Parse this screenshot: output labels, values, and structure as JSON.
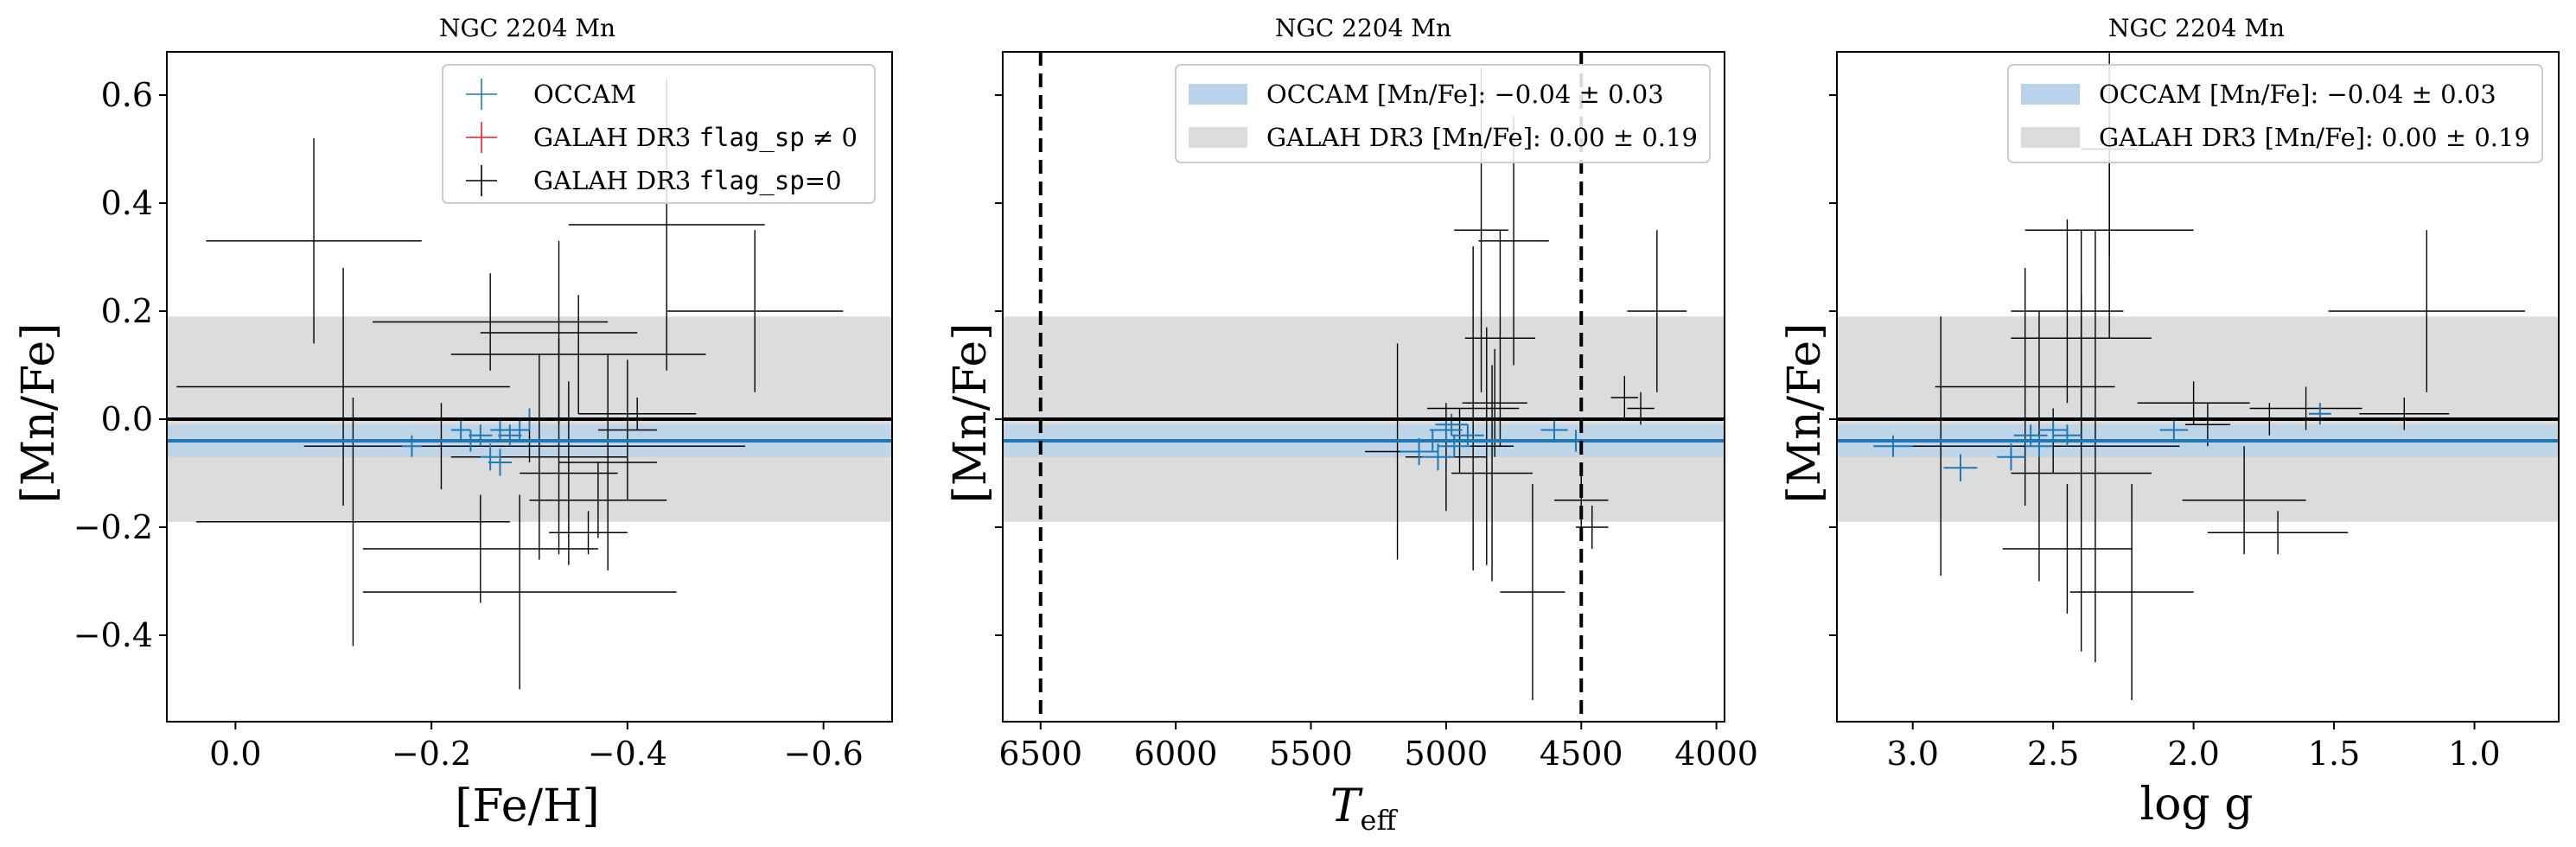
{
  "colors": {
    "occam": "#1f77b4",
    "occam_band": "#b9d3ea",
    "galah_flagged": "#d62728",
    "galah": "#000000",
    "galah_band": "#dcdcdc"
  },
  "panels": [
    {
      "title": "NGC 2204 Mn",
      "xlabel": "[Fe/H]",
      "ylabel": "[Mn/Fe]",
      "xticks": [
        "0.0",
        "−0.2",
        "−0.4",
        "−0.6"
      ],
      "yticks": [
        "0.6",
        "0.4",
        "0.2",
        "0.0",
        "−0.2",
        "−0.4"
      ],
      "legend": [
        {
          "kind": "cross",
          "color": "occam",
          "text": "OCCAM"
        },
        {
          "kind": "cross",
          "color": "galah_flagged",
          "text": "GALAH DR3 ",
          "mono": "flag_sp",
          "tail": " ≠ 0"
        },
        {
          "kind": "cross",
          "color": "galah",
          "text": "GALAH DR3 ",
          "mono": "flag_sp",
          "tail": "=0"
        }
      ]
    },
    {
      "title": "NGC 2204 Mn",
      "xlabel": "T",
      "xlabel_sub": "eff",
      "ylabel": "[Mn/Fe]",
      "xticks": [
        "6500",
        "6000",
        "5500",
        "5000",
        "4500",
        "4000"
      ],
      "legend": [
        {
          "kind": "patch",
          "color": "occam_band",
          "text": "OCCAM [Mn/Fe]: −0.04 ± 0.03"
        },
        {
          "kind": "patch",
          "color": "galah_band",
          "text": "GALAH DR3 [Mn/Fe]: 0.00 ± 0.19"
        }
      ]
    },
    {
      "title": "NGC 2204 Mn",
      "xlabel": "log g",
      "ylabel": "[Mn/Fe]",
      "xticks": [
        "3.0",
        "2.5",
        "2.0",
        "1.5",
        "1.0"
      ],
      "legend": [
        {
          "kind": "patch",
          "color": "occam_band",
          "text": "OCCAM [Mn/Fe]: −0.04 ± 0.03"
        },
        {
          "kind": "patch",
          "color": "galah_band",
          "text": "GALAH DR3 [Mn/Fe]: 0.00 ± 0.19"
        }
      ]
    }
  ],
  "chart_data": [
    {
      "type": "scatter",
      "title": "NGC 2204 Mn",
      "xlabel": "[Fe/H]",
      "ylabel": "[Mn/Fe]",
      "x_inverted": true,
      "xlim": [
        0.07,
        -0.67
      ],
      "ylim": [
        -0.56,
        0.68
      ],
      "xtick_values": [
        0.0,
        -0.2,
        -0.4,
        -0.6
      ],
      "ytick_values": [
        0.6,
        0.4,
        0.2,
        0.0,
        -0.2,
        -0.4
      ],
      "bands": [
        {
          "name": "GALAH DR3 [Mn/Fe]",
          "center": 0.0,
          "halfwidth": 0.19,
          "color": "galah_band"
        },
        {
          "name": "OCCAM [Mn/Fe]",
          "center": -0.04,
          "halfwidth": 0.03,
          "color": "occam_band"
        }
      ],
      "hlines": [
        {
          "y": 0.0,
          "color": "#000000"
        },
        {
          "y": -0.04,
          "color": "#1f77b4"
        }
      ],
      "vlines": [],
      "series": [
        {
          "name": "OCCAM",
          "color": "occam",
          "points": [
            {
              "x": -0.23,
              "y": -0.02,
              "xerr": 0.01,
              "yerr": 0.02
            },
            {
              "x": -0.24,
              "y": -0.04,
              "xerr": 0.01,
              "yerr": 0.02
            },
            {
              "x": -0.25,
              "y": -0.03,
              "xerr": 0.012,
              "yerr": 0.02
            },
            {
              "x": -0.26,
              "y": -0.07,
              "xerr": 0.01,
              "yerr": 0.025
            },
            {
              "x": -0.27,
              "y": -0.08,
              "xerr": 0.012,
              "yerr": 0.025
            },
            {
              "x": -0.27,
              "y": -0.02,
              "xerr": 0.01,
              "yerr": 0.02
            },
            {
              "x": -0.28,
              "y": -0.03,
              "xerr": 0.012,
              "yerr": 0.02
            },
            {
              "x": -0.29,
              "y": -0.02,
              "xerr": 0.01,
              "yerr": 0.02
            },
            {
              "x": -0.3,
              "y": 0.0,
              "xerr": 0.012,
              "yerr": 0.02
            },
            {
              "x": -0.18,
              "y": -0.05,
              "xerr": 0.01,
              "yerr": 0.02
            }
          ]
        },
        {
          "name": "GALAH DR3 flag_sp ≠ 0",
          "color": "galah_flagged",
          "points": []
        },
        {
          "name": "GALAH DR3 flag_sp=0",
          "color": "galah",
          "points": [
            {
              "x": -0.08,
              "y": 0.33,
              "xerr": 0.11,
              "yerr": 0.19
            },
            {
              "x": -0.44,
              "y": 0.36,
              "xerr": 0.1,
              "yerr": 0.27
            },
            {
              "x": -0.53,
              "y": 0.2,
              "xerr": 0.09,
              "yerr": 0.15
            },
            {
              "x": -0.33,
              "y": 0.16,
              "xerr": 0.08,
              "yerr": 0.17
            },
            {
              "x": -0.35,
              "y": 0.12,
              "xerr": 0.13,
              "yerr": 0.11
            },
            {
              "x": -0.26,
              "y": 0.18,
              "xerr": 0.12,
              "yerr": 0.09
            },
            {
              "x": -0.11,
              "y": 0.06,
              "xerr": 0.17,
              "yerr": 0.22
            },
            {
              "x": -0.21,
              "y": -0.05,
              "xerr": 0.14,
              "yerr": 0.08
            },
            {
              "x": -0.12,
              "y": -0.19,
              "xerr": 0.16,
              "yerr": 0.23
            },
            {
              "x": -0.31,
              "y": -0.07,
              "xerr": 0.09,
              "yerr": 0.19
            },
            {
              "x": -0.34,
              "y": -0.1,
              "xerr": 0.05,
              "yerr": 0.17
            },
            {
              "x": -0.38,
              "y": -0.08,
              "xerr": 0.05,
              "yerr": 0.2
            },
            {
              "x": -0.33,
              "y": -0.05,
              "xerr": 0.13,
              "yerr": 0.2
            },
            {
              "x": -0.25,
              "y": -0.24,
              "xerr": 0.12,
              "yerr": 0.1
            },
            {
              "x": -0.29,
              "y": -0.32,
              "xerr": 0.16,
              "yerr": 0.18
            },
            {
              "x": -0.36,
              "y": -0.21,
              "xerr": 0.04,
              "yerr": 0.04
            },
            {
              "x": -0.41,
              "y": 0.01,
              "xerr": 0.06,
              "yerr": 0.03
            },
            {
              "x": -0.37,
              "y": -0.15,
              "xerr": 0.07,
              "yerr": 0.07
            },
            {
              "x": -0.4,
              "y": -0.02,
              "xerr": 0.03,
              "yerr": 0.13
            },
            {
              "x": -0.3,
              "y": -0.05,
              "xerr": 0.22,
              "yerr": 0.03
            }
          ]
        }
      ]
    },
    {
      "type": "scatter",
      "title": "NGC 2204 Mn",
      "xlabel": "Teff",
      "ylabel": "[Mn/Fe]",
      "x_inverted": true,
      "xlim": [
        6640,
        3970
      ],
      "ylim": [
        -0.56,
        0.68
      ],
      "xtick_values": [
        6500,
        6000,
        5500,
        5000,
        4500,
        4000
      ],
      "bands": [
        {
          "name": "GALAH DR3 [Mn/Fe]",
          "center": 0.0,
          "halfwidth": 0.19,
          "color": "galah_band"
        },
        {
          "name": "OCCAM [Mn/Fe]",
          "center": -0.04,
          "halfwidth": 0.03,
          "color": "occam_band"
        }
      ],
      "hlines": [
        {
          "y": 0.0,
          "color": "#000000"
        },
        {
          "y": -0.04,
          "color": "#1f77b4"
        }
      ],
      "vlines": [
        {
          "x": 6500,
          "dashed": true
        },
        {
          "x": 4500,
          "dashed": true
        }
      ],
      "series": [
        {
          "name": "OCCAM",
          "color": "occam",
          "points": [
            {
              "x": 5000,
              "y": -0.02,
              "xerr": 60,
              "yerr": 0.02
            },
            {
              "x": 5050,
              "y": -0.04,
              "xerr": 70,
              "yerr": 0.02
            },
            {
              "x": 4970,
              "y": -0.05,
              "xerr": 60,
              "yerr": 0.02
            },
            {
              "x": 5100,
              "y": -0.06,
              "xerr": 70,
              "yerr": 0.025
            },
            {
              "x": 5030,
              "y": -0.07,
              "xerr": 60,
              "yerr": 0.025
            },
            {
              "x": 4920,
              "y": -0.03,
              "xerr": 60,
              "yerr": 0.02
            },
            {
              "x": 4600,
              "y": -0.02,
              "xerr": 50,
              "yerr": 0.02
            },
            {
              "x": 4520,
              "y": -0.04,
              "xerr": 50,
              "yerr": 0.02
            },
            {
              "x": 4980,
              "y": -0.01,
              "xerr": 60,
              "yerr": 0.02
            }
          ]
        },
        {
          "name": "GALAH DR3 flag_sp=0",
          "color": "galah",
          "points": [
            {
              "x": 4870,
              "y": 0.35,
              "xerr": 100,
              "yerr": 0.3
            },
            {
              "x": 4220,
              "y": 0.2,
              "xerr": 110,
              "yerr": 0.15
            },
            {
              "x": 4750,
              "y": 0.33,
              "xerr": 130,
              "yerr": 0.23
            },
            {
              "x": 4800,
              "y": 0.15,
              "xerr": 130,
              "yerr": 0.2
            },
            {
              "x": 4900,
              "y": 0.02,
              "xerr": 170,
              "yerr": 0.3
            },
            {
              "x": 5180,
              "y": -0.06,
              "xerr": 120,
              "yerr": 0.2
            },
            {
              "x": 4850,
              "y": -0.05,
              "xerr": 100,
              "yerr": 0.22
            },
            {
              "x": 4830,
              "y": -0.1,
              "xerr": 150,
              "yerr": 0.2
            },
            {
              "x": 4680,
              "y": -0.32,
              "xerr": 120,
              "yerr": 0.2
            },
            {
              "x": 4820,
              "y": 0.03,
              "xerr": 120,
              "yerr": 0.1
            },
            {
              "x": 5000,
              "y": -0.07,
              "xerr": 150,
              "yerr": 0.1
            },
            {
              "x": 4500,
              "y": -0.15,
              "xerr": 100,
              "yerr": 0.06
            },
            {
              "x": 4460,
              "y": -0.2,
              "xerr": 60,
              "yerr": 0.04
            },
            {
              "x": 4340,
              "y": 0.04,
              "xerr": 50,
              "yerr": 0.04
            },
            {
              "x": 4280,
              "y": 0.02,
              "xerr": 50,
              "yerr": 0.03
            },
            {
              "x": 4950,
              "y": -0.04,
              "xerr": 120,
              "yerr": 0.06
            }
          ]
        }
      ]
    },
    {
      "type": "scatter",
      "title": "NGC 2204 Mn",
      "xlabel": "log g",
      "ylabel": "[Mn/Fe]",
      "x_inverted": true,
      "xlim": [
        3.27,
        0.7
      ],
      "ylim": [
        -0.56,
        0.68
      ],
      "xtick_values": [
        3.0,
        2.5,
        2.0,
        1.5,
        1.0
      ],
      "bands": [
        {
          "name": "GALAH DR3 [Mn/Fe]",
          "center": 0.0,
          "halfwidth": 0.19,
          "color": "galah_band"
        },
        {
          "name": "OCCAM [Mn/Fe]",
          "center": -0.04,
          "halfwidth": 0.03,
          "color": "occam_band"
        }
      ],
      "hlines": [
        {
          "y": 0.0,
          "color": "#000000"
        },
        {
          "y": -0.04,
          "color": "#1f77b4"
        }
      ],
      "vlines": [],
      "series": [
        {
          "name": "OCCAM",
          "color": "occam",
          "points": [
            {
              "x": 3.07,
              "y": -0.05,
              "xerr": 0.07,
              "yerr": 0.02
            },
            {
              "x": 2.83,
              "y": -0.09,
              "xerr": 0.06,
              "yerr": 0.025
            },
            {
              "x": 2.65,
              "y": -0.07,
              "xerr": 0.05,
              "yerr": 0.025
            },
            {
              "x": 2.58,
              "y": -0.03,
              "xerr": 0.06,
              "yerr": 0.02
            },
            {
              "x": 2.55,
              "y": -0.05,
              "xerr": 0.05,
              "yerr": 0.02
            },
            {
              "x": 2.5,
              "y": -0.02,
              "xerr": 0.05,
              "yerr": 0.02
            },
            {
              "x": 2.07,
              "y": -0.02,
              "xerr": 0.05,
              "yerr": 0.02
            },
            {
              "x": 1.55,
              "y": 0.01,
              "xerr": 0.04,
              "yerr": 0.02
            },
            {
              "x": 2.45,
              "y": -0.03,
              "xerr": 0.05,
              "yerr": 0.02
            }
          ]
        },
        {
          "name": "GALAH DR3 flag_sp=0",
          "color": "galah",
          "points": [
            {
              "x": 2.3,
              "y": 0.5,
              "xerr": 0.1,
              "yerr": 0.2
            },
            {
              "x": 2.3,
              "y": 0.35,
              "xerr": 0.3,
              "yerr": 0.2
            },
            {
              "x": 1.17,
              "y": 0.2,
              "xerr": 0.35,
              "yerr": 0.15
            },
            {
              "x": 2.4,
              "y": 0.15,
              "xerr": 0.25,
              "yerr": 0.2
            },
            {
              "x": 2.45,
              "y": 0.2,
              "xerr": 0.2,
              "yerr": 0.17
            },
            {
              "x": 2.6,
              "y": 0.06,
              "xerr": 0.32,
              "yerr": 0.22
            },
            {
              "x": 2.9,
              "y": -0.05,
              "xerr": 0.2,
              "yerr": 0.24
            },
            {
              "x": 2.55,
              "y": -0.05,
              "xerr": 0.3,
              "yerr": 0.25
            },
            {
              "x": 2.4,
              "y": -0.1,
              "xerr": 0.25,
              "yerr": 0.33
            },
            {
              "x": 2.35,
              "y": -0.05,
              "xerr": 0.3,
              "yerr": 0.4
            },
            {
              "x": 2.45,
              "y": -0.24,
              "xerr": 0.23,
              "yerr": 0.12
            },
            {
              "x": 2.22,
              "y": -0.32,
              "xerr": 0.22,
              "yerr": 0.2
            },
            {
              "x": 1.82,
              "y": -0.15,
              "xerr": 0.22,
              "yerr": 0.1
            },
            {
              "x": 1.7,
              "y": -0.21,
              "xerr": 0.25,
              "yerr": 0.04
            },
            {
              "x": 1.6,
              "y": 0.02,
              "xerr": 0.2,
              "yerr": 0.04
            },
            {
              "x": 1.73,
              "y": 0.0,
              "xerr": 0.3,
              "yerr": 0.03
            },
            {
              "x": 1.25,
              "y": 0.01,
              "xerr": 0.16,
              "yerr": 0.03
            },
            {
              "x": 2.0,
              "y": 0.03,
              "xerr": 0.2,
              "yerr": 0.04
            },
            {
              "x": 2.5,
              "y": -0.04,
              "xerr": 0.25,
              "yerr": 0.06
            },
            {
              "x": 1.95,
              "y": -0.01,
              "xerr": 0.08,
              "yerr": 0.04
            }
          ]
        }
      ]
    }
  ]
}
